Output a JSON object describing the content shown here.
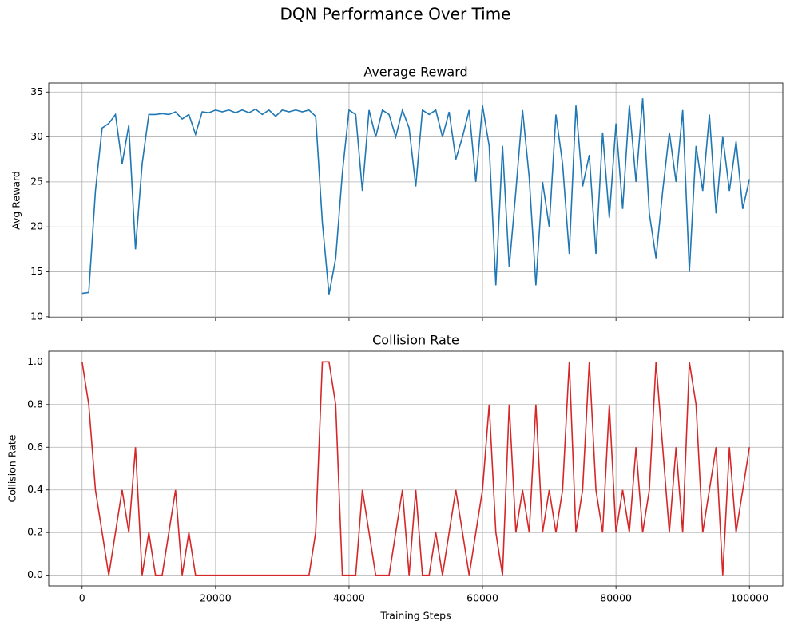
{
  "title": "DQN Performance Over Time",
  "chart_data": [
    {
      "type": "line",
      "title": "Average Reward",
      "ylabel": "Avg Reward",
      "color": "#1f77b4",
      "grid": true,
      "x": [
        0,
        1000,
        2000,
        3000,
        4000,
        5000,
        6000,
        7000,
        8000,
        9000,
        10000,
        11000,
        12000,
        13000,
        14000,
        15000,
        16000,
        17000,
        18000,
        19000,
        20000,
        21000,
        22000,
        23000,
        24000,
        25000,
        26000,
        27000,
        28000,
        29000,
        30000,
        31000,
        32000,
        33000,
        34000,
        35000,
        36000,
        37000,
        38000,
        39000,
        40000,
        41000,
        42000,
        43000,
        44000,
        45000,
        46000,
        47000,
        48000,
        49000,
        50000,
        51000,
        52000,
        53000,
        54000,
        55000,
        56000,
        57000,
        58000,
        59000,
        60000,
        61000,
        62000,
        63000,
        64000,
        65000,
        66000,
        67000,
        68000,
        69000,
        70000,
        71000,
        72000,
        73000,
        74000,
        75000,
        76000,
        77000,
        78000,
        79000,
        80000,
        81000,
        82000,
        83000,
        84000,
        85000,
        86000,
        87000,
        88000,
        89000,
        90000,
        91000,
        92000,
        93000,
        94000,
        95000,
        96000,
        97000,
        98000,
        99000,
        100000
      ],
      "values": [
        12.6,
        12.7,
        24,
        31,
        31.5,
        32.5,
        27,
        31.3,
        17.5,
        27,
        32.5,
        32.5,
        32.6,
        32.5,
        32.8,
        32,
        32.5,
        30.3,
        32.8,
        32.7,
        33,
        32.8,
        33,
        32.7,
        33,
        32.7,
        33.1,
        32.5,
        33,
        32.3,
        33,
        32.8,
        33,
        32.8,
        33,
        32.3,
        20.5,
        12.5,
        16.5,
        26,
        33,
        32.5,
        24,
        33,
        30,
        33,
        32.5,
        30,
        33,
        31,
        24.5,
        33,
        32.5,
        33,
        30,
        32.8,
        27.5,
        30,
        33,
        25,
        33.5,
        29,
        13.5,
        29,
        15.5,
        24,
        33,
        25.5,
        13.5,
        25,
        20,
        32.5,
        27,
        17,
        33.5,
        24.5,
        28,
        17,
        30.5,
        21,
        31.5,
        22,
        33.5,
        25,
        34.3,
        21.5,
        16.5,
        24,
        30.5,
        25,
        33,
        15,
        29,
        24,
        32.5,
        21.5,
        30,
        24,
        29.5,
        22,
        25.3
      ],
      "xlim": [
        -5000,
        105000
      ],
      "xticks": [
        0,
        20000,
        40000,
        60000,
        80000,
        100000
      ],
      "ylim": [
        9.9,
        36.0
      ],
      "yticks": [
        10,
        15,
        20,
        25,
        30,
        35
      ]
    },
    {
      "type": "line",
      "title": "Collision Rate",
      "ylabel": "Collision Rate",
      "xlabel": "Training Steps",
      "color": "#d62728",
      "grid": true,
      "x": [
        0,
        1000,
        2000,
        3000,
        4000,
        5000,
        6000,
        7000,
        8000,
        9000,
        10000,
        11000,
        12000,
        13000,
        14000,
        15000,
        16000,
        17000,
        18000,
        19000,
        20000,
        21000,
        22000,
        23000,
        24000,
        25000,
        26000,
        27000,
        28000,
        29000,
        30000,
        31000,
        32000,
        33000,
        34000,
        35000,
        36000,
        37000,
        38000,
        39000,
        40000,
        41000,
        42000,
        43000,
        44000,
        45000,
        46000,
        47000,
        48000,
        49000,
        50000,
        51000,
        52000,
        53000,
        54000,
        55000,
        56000,
        57000,
        58000,
        59000,
        60000,
        61000,
        62000,
        63000,
        64000,
        65000,
        66000,
        67000,
        68000,
        69000,
        70000,
        71000,
        72000,
        73000,
        74000,
        75000,
        76000,
        77000,
        78000,
        79000,
        80000,
        81000,
        82000,
        83000,
        84000,
        85000,
        86000,
        87000,
        88000,
        89000,
        90000,
        91000,
        92000,
        93000,
        94000,
        95000,
        96000,
        97000,
        98000,
        99000,
        100000
      ],
      "values": [
        1,
        0.8,
        0.4,
        0.2,
        0,
        0.2,
        0.4,
        0.2,
        0.6,
        0,
        0.2,
        0,
        0,
        0.2,
        0.4,
        0,
        0.2,
        0,
        0,
        0,
        0,
        0,
        0,
        0,
        0,
        0,
        0,
        0,
        0,
        0,
        0,
        0,
        0,
        0,
        0,
        0.2,
        1,
        1,
        0.8,
        0,
        0,
        0,
        0.4,
        0.2,
        0,
        0,
        0,
        0.2,
        0.4,
        0,
        0.4,
        0,
        0,
        0.2,
        0,
        0.2,
        0.4,
        0.2,
        0,
        0.2,
        0.4,
        0.8,
        0.2,
        0,
        0.8,
        0.2,
        0.4,
        0.2,
        0.8,
        0.2,
        0.4,
        0.2,
        0.4,
        1,
        0.2,
        0.4,
        1,
        0.4,
        0.2,
        0.8,
        0.2,
        0.4,
        0.2,
        0.6,
        0.2,
        0.4,
        1,
        0.6,
        0.2,
        0.6,
        0.2,
        1,
        0.8,
        0.2,
        0.4,
        0.6,
        0,
        0.6,
        0.2,
        0.4,
        0.6
      ],
      "xlim": [
        -5000,
        105000
      ],
      "xticks": [
        0,
        20000,
        40000,
        60000,
        80000,
        100000
      ],
      "ylim": [
        -0.05,
        1.05
      ],
      "yticks": [
        {
          "value": 0,
          "label": "0.0"
        },
        {
          "value": 0.2,
          "label": "0.2"
        },
        {
          "value": 0.4,
          "label": "0.4"
        },
        {
          "value": 0.6,
          "label": "0.6"
        },
        {
          "value": 0.8,
          "label": "0.8"
        },
        {
          "value": 1,
          "label": "1.0"
        }
      ]
    }
  ]
}
